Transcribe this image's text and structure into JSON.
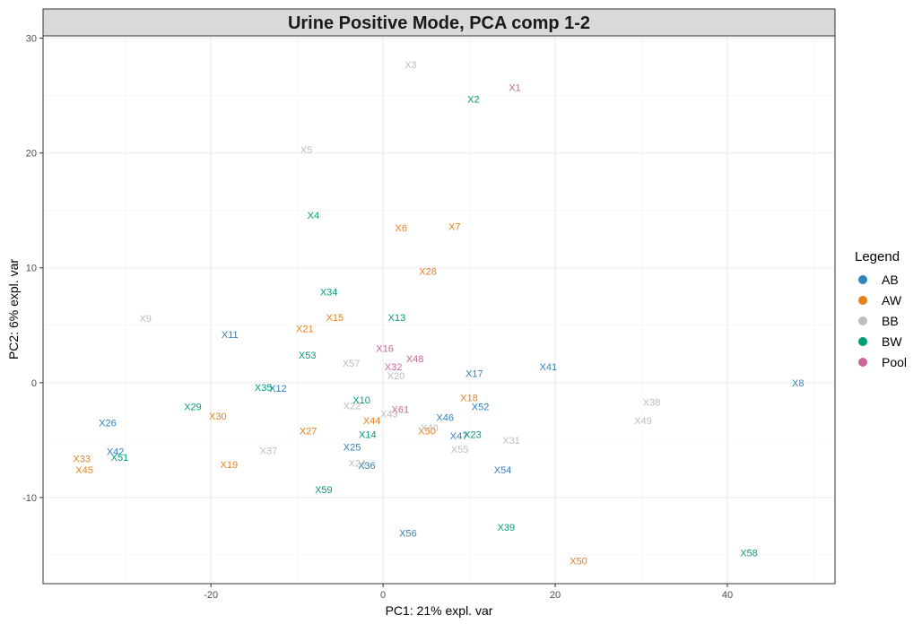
{
  "chart_data": {
    "type": "scatter",
    "title": "Urine Positive Mode, PCA comp 1-2",
    "xlabel": "PC1: 21% expl. var",
    "ylabel": "PC2: 6% expl. var",
    "xlim": [
      -39.5,
      52.5
    ],
    "ylim": [
      -17.5,
      30.2
    ],
    "x_ticks": [
      -20,
      0,
      20,
      40
    ],
    "y_ticks": [
      -10,
      0,
      10,
      20,
      30
    ],
    "grid": true,
    "legend": {
      "title": "Legend",
      "position": "right"
    },
    "series": [
      {
        "name": "AB",
        "color": "#3182BD",
        "points": [
          {
            "label": "X8",
            "x": 48.2,
            "y": 0
          },
          {
            "label": "X11",
            "x": -17.8,
            "y": 4.2
          },
          {
            "label": "X12",
            "x": -12.2,
            "y": -0.5
          },
          {
            "label": "X17",
            "x": 10.6,
            "y": 0.8
          },
          {
            "label": "X41",
            "x": 19.2,
            "y": 1.4
          },
          {
            "label": "X26",
            "x": -32.0,
            "y": -3.5
          },
          {
            "label": "X42",
            "x": -31.1,
            "y": -6.0
          },
          {
            "label": "X46",
            "x": 7.2,
            "y": -3.0
          },
          {
            "label": "X52",
            "x": 11.3,
            "y": -2.1
          },
          {
            "label": "X25",
            "x": -3.6,
            "y": -5.6
          },
          {
            "label": "X36",
            "x": -1.9,
            "y": -7.2
          },
          {
            "label": "X47",
            "x": 8.8,
            "y": -4.6
          },
          {
            "label": "X54",
            "x": 13.9,
            "y": -7.6
          },
          {
            "label": "X56",
            "x": 2.9,
            "y": -13.1
          }
        ]
      },
      {
        "name": "AW",
        "color": "#E6821E",
        "points": [
          {
            "label": "X6",
            "x": 2.1,
            "y": 13.5
          },
          {
            "label": "X7",
            "x": 8.3,
            "y": 13.6
          },
          {
            "label": "X28",
            "x": 5.2,
            "y": 9.7
          },
          {
            "label": "X15",
            "x": -5.6,
            "y": 5.7
          },
          {
            "label": "X21",
            "x": -9.1,
            "y": 4.7
          },
          {
            "label": "X18",
            "x": 10.0,
            "y": -1.3
          },
          {
            "label": "X30",
            "x": -19.2,
            "y": -2.9
          },
          {
            "label": "X44",
            "x": -1.3,
            "y": -3.3
          },
          {
            "label": "X27",
            "x": -8.7,
            "y": -4.2
          },
          {
            "label": "X50",
            "x": 5.1,
            "y": -4.2
          },
          {
            "label": "X33",
            "x": -35.0,
            "y": -6.6
          },
          {
            "label": "X45",
            "x": -34.7,
            "y": -7.6
          },
          {
            "label": "X19",
            "x": -17.9,
            "y": -7.1
          },
          {
            "label": "X50",
            "x": 22.7,
            "y": -15.5
          }
        ]
      },
      {
        "name": "BB",
        "color": "#BDBDBD",
        "points": [
          {
            "label": "X3",
            "x": 3.2,
            "y": 27.7
          },
          {
            "label": "X5",
            "x": -8.9,
            "y": 20.3
          },
          {
            "label": "X9",
            "x": -27.6,
            "y": 5.6
          },
          {
            "label": "X57",
            "x": -3.7,
            "y": 1.7
          },
          {
            "label": "X20",
            "x": 1.5,
            "y": 0.6
          },
          {
            "label": "X22",
            "x": -3.6,
            "y": -2.0
          },
          {
            "label": "X43",
            "x": 0.7,
            "y": -2.7
          },
          {
            "label": "X40",
            "x": 5.4,
            "y": -3.9
          },
          {
            "label": "X55",
            "x": 8.9,
            "y": -5.8
          },
          {
            "label": "X31",
            "x": 14.9,
            "y": -5.0
          },
          {
            "label": "X38",
            "x": 31.2,
            "y": -1.7
          },
          {
            "label": "X49",
            "x": 30.2,
            "y": -3.3
          },
          {
            "label": "X37",
            "x": -13.3,
            "y": -5.9
          },
          {
            "label": "X24",
            "x": -3.0,
            "y": -7.0
          }
        ]
      },
      {
        "name": "BW",
        "color": "#009E73",
        "points": [
          {
            "label": "X2",
            "x": 10.5,
            "y": 24.7
          },
          {
            "label": "X4",
            "x": -8.1,
            "y": 14.6
          },
          {
            "label": "X34",
            "x": -6.3,
            "y": 7.9
          },
          {
            "label": "X13",
            "x": 1.6,
            "y": 5.7
          },
          {
            "label": "X53",
            "x": -8.8,
            "y": 2.4
          },
          {
            "label": "X35",
            "x": -13.9,
            "y": -0.4
          },
          {
            "label": "X29",
            "x": -22.1,
            "y": -2.1
          },
          {
            "label": "X10",
            "x": -2.5,
            "y": -1.5
          },
          {
            "label": "X14",
            "x": -1.8,
            "y": -4.5
          },
          {
            "label": "X23",
            "x": 10.4,
            "y": -4.5
          },
          {
            "label": "X51",
            "x": -30.6,
            "y": -6.5
          },
          {
            "label": "X59",
            "x": -6.9,
            "y": -9.3
          },
          {
            "label": "X39",
            "x": 14.3,
            "y": -12.6
          },
          {
            "label": "X58",
            "x": 42.5,
            "y": -14.8
          }
        ]
      },
      {
        "name": "Pool",
        "color": "#CC6699",
        "points": [
          {
            "label": "X1",
            "x": 15.3,
            "y": 25.7
          },
          {
            "label": "X16",
            "x": 0.2,
            "y": 3.0
          },
          {
            "label": "X48",
            "x": 3.7,
            "y": 2.1
          },
          {
            "label": "X32",
            "x": 1.2,
            "y": 1.4
          },
          {
            "label": "X61",
            "x": 2.0,
            "y": -2.3
          }
        ]
      }
    ]
  }
}
